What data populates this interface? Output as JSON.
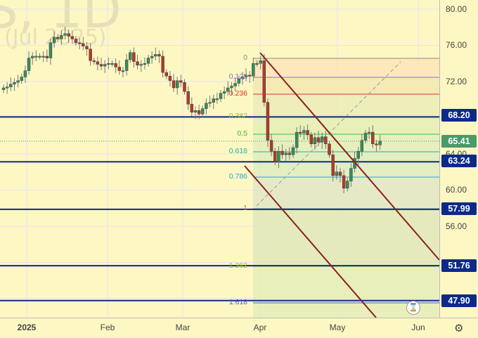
{
  "watermark": {
    "symbol": "S, 1D",
    "contract": "(Jul 2025)"
  },
  "price_axis": {
    "ticks": [
      "80.00",
      "76.00",
      "72.00",
      "64.00",
      "60.00",
      "56.00"
    ],
    "labels": [
      {
        "value": "68.20",
        "color": "#0d2a8a"
      },
      {
        "value": "65.41",
        "color": "#4a9a6a"
      },
      {
        "value": "63.24",
        "color": "#0d2a8a"
      },
      {
        "value": "57.99",
        "color": "#0d2a8a"
      },
      {
        "value": "51.76",
        "color": "#0d2a8a"
      },
      {
        "value": "47.90",
        "color": "#0d2a8a"
      }
    ]
  },
  "time_axis": {
    "ticks": [
      "2025",
      "Feb",
      "Mar",
      "Apr",
      "May",
      "Jun"
    ]
  },
  "fib_levels": [
    {
      "label": "0",
      "color": "#888888"
    },
    {
      "label": "0.125",
      "color": "#8a70d0"
    },
    {
      "label": "0.236",
      "color": "#e03030"
    },
    {
      "label": "0.382",
      "color": "#a0c030"
    },
    {
      "label": "0.5",
      "color": "#30c030"
    },
    {
      "label": "0.618",
      "color": "#20b890"
    },
    {
      "label": "0.786",
      "color": "#30a0e0"
    },
    {
      "label": "1",
      "color": "#888888"
    },
    {
      "label": "1.382",
      "color": "#a0c030"
    },
    {
      "label": "1.618",
      "color": "#4060d0"
    }
  ],
  "colors": {
    "up": "#3a8a5a",
    "down": "#b03a2a",
    "level_line": "#0d2a8a",
    "channel": "#8a1f1f",
    "background": "#fdf7c3"
  },
  "chart_data": {
    "type": "candlestick",
    "closes": [
      71.3,
      71.4,
      71.7,
      71.9,
      72.1,
      72.5,
      73.2,
      74.6,
      74.8,
      74.8,
      74.8,
      74.8,
      74.6,
      76.3,
      76.9,
      76.7,
      77.1,
      77.3,
      77.0,
      76.7,
      76.3,
      76.2,
      75.9,
      75.6,
      74.3,
      74.2,
      73.9,
      73.7,
      73.9,
      74.0,
      74.0,
      73.6,
      73.2,
      73.2,
      74.4,
      75.2,
      74.2,
      73.8,
      73.9,
      74.0,
      74.6,
      74.8,
      75.0,
      74.8,
      73.0,
      72.6,
      72.1,
      71.3,
      72.1,
      71.9,
      70.9,
      69.5,
      68.6,
      68.8,
      68.4,
      69.0,
      69.6,
      69.7,
      70.1,
      70.1,
      70.7,
      70.9,
      71.3,
      71.5,
      71.8,
      72.3,
      72.5,
      72.7,
      72.6,
      74.0,
      74.0,
      74.3,
      69.7,
      65.5,
      64.3,
      63.1,
      64.3,
      63.9,
      64.1,
      63.9,
      64.7,
      66.4,
      66.3,
      66.6,
      66.1,
      65.1,
      65.8,
      65.3,
      65.9,
      65.1,
      63.9,
      61.6,
      62.0,
      61.6,
      60.2,
      61.0,
      62.4,
      63.5,
      64.3,
      65.5,
      66.3,
      66.4,
      65.1,
      65.0,
      65.41
    ],
    "last_price": 65.41,
    "horizontal_levels": [
      68.2,
      63.24,
      57.99,
      51.76,
      47.9
    ],
    "y_range": [
      44.5,
      81
    ],
    "x_ticks": [
      "2025",
      "Feb",
      "Mar",
      "Apr",
      "May",
      "Jun"
    ]
  }
}
